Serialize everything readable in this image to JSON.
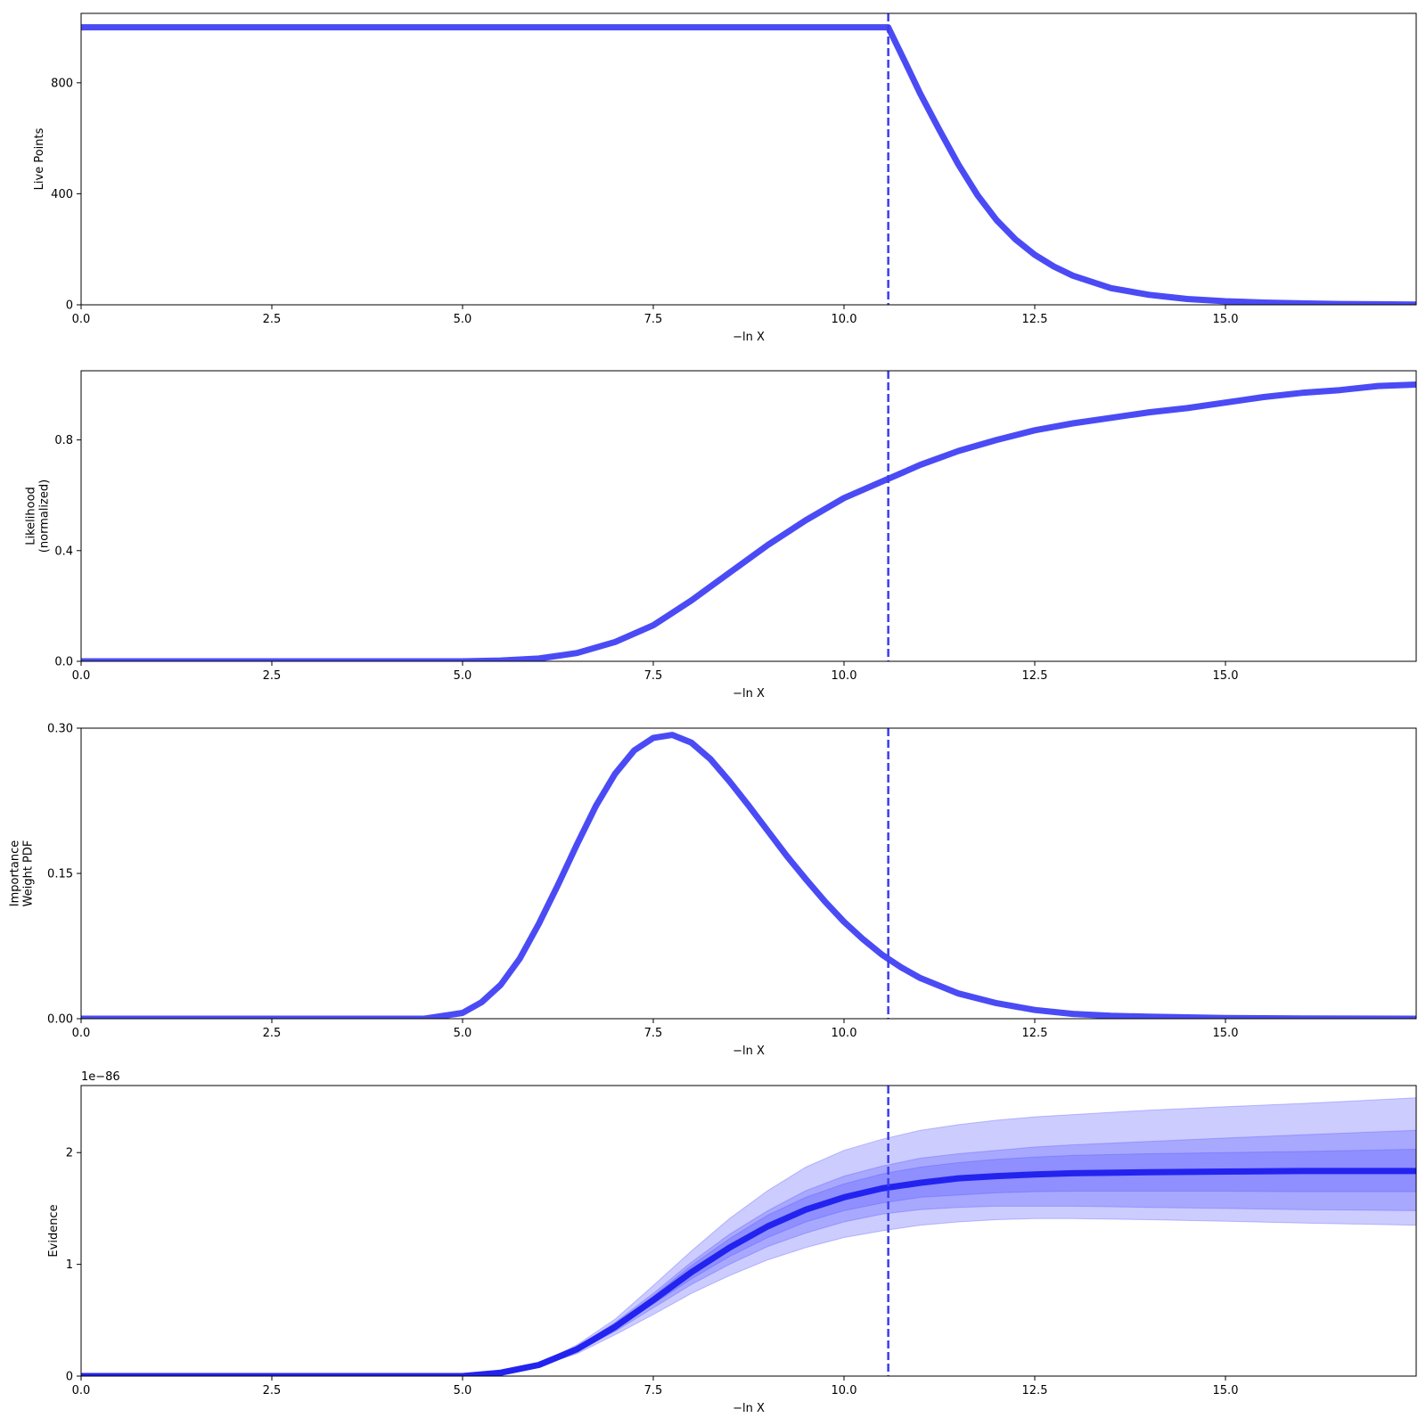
{
  "colors": {
    "line": "#4b4bf5",
    "evidence_line": "#2323f0",
    "band": "#5555ff",
    "marker": "#3c3cee"
  },
  "chart_data": [
    {
      "type": "line",
      "panel": "live-points",
      "xlabel": "−ln X",
      "ylabel": [
        "Live Points"
      ],
      "xlim": [
        0,
        17.5
      ],
      "ylim": [
        0,
        1050
      ],
      "xticks": [
        "0.0",
        "2.5",
        "5.0",
        "7.5",
        "10.0",
        "12.5",
        "15.0"
      ],
      "yticks": [
        "0",
        "400",
        "800"
      ],
      "dashed_marker_x": 10.58,
      "series": [
        {
          "x": [
            0,
            10.5,
            10.58,
            10.8,
            11.0,
            11.25,
            11.5,
            11.75,
            12.0,
            12.25,
            12.5,
            12.75,
            13.0,
            13.5,
            14.0,
            14.5,
            15.0,
            15.5,
            16.0,
            16.5,
            17.0,
            17.5
          ],
          "y": [
            1000,
            1000,
            1000,
            875,
            760,
            630,
            505,
            395,
            305,
            235,
            180,
            138,
            105,
            60,
            36,
            21,
            13,
            8,
            5,
            3,
            2,
            1
          ]
        }
      ]
    },
    {
      "type": "line",
      "panel": "likelihood",
      "xlabel": "−ln X",
      "ylabel": [
        "Likelihood",
        "(normalized)"
      ],
      "xlim": [
        0,
        17.5
      ],
      "ylim": [
        0,
        1.05
      ],
      "xticks": [
        "0.0",
        "2.5",
        "5.0",
        "7.5",
        "10.0",
        "12.5",
        "15.0"
      ],
      "yticks": [
        "0.0",
        "0.4",
        "0.8"
      ],
      "dashed_marker_x": 10.58,
      "series": [
        {
          "x": [
            0,
            5.0,
            5.5,
            6.0,
            6.5,
            7.0,
            7.5,
            8.0,
            8.5,
            9.0,
            9.5,
            10.0,
            10.5,
            11.0,
            11.5,
            12.0,
            12.5,
            13.0,
            13.5,
            14.0,
            14.5,
            15.0,
            15.5,
            16.0,
            16.5,
            17.0,
            17.5
          ],
          "y": [
            0.0,
            0.0,
            0.003,
            0.01,
            0.03,
            0.07,
            0.13,
            0.22,
            0.32,
            0.42,
            0.51,
            0.59,
            0.65,
            0.71,
            0.76,
            0.8,
            0.835,
            0.86,
            0.88,
            0.9,
            0.915,
            0.935,
            0.955,
            0.97,
            0.98,
            0.995,
            1.0
          ]
        }
      ]
    },
    {
      "type": "line",
      "panel": "importance-weight",
      "xlabel": "−ln X",
      "ylabel": [
        "Importance",
        "Weight PDF"
      ],
      "xlim": [
        0,
        17.5
      ],
      "ylim": [
        0,
        0.3
      ],
      "xticks": [
        "0.0",
        "2.5",
        "5.0",
        "7.5",
        "10.0",
        "12.5",
        "15.0"
      ],
      "yticks": [
        "0.00",
        "0.15",
        "0.30"
      ],
      "dashed_marker_x": 10.58,
      "series": [
        {
          "x": [
            0,
            4.5,
            5.0,
            5.25,
            5.5,
            5.75,
            6.0,
            6.25,
            6.5,
            6.75,
            7.0,
            7.25,
            7.5,
            7.75,
            8.0,
            8.25,
            8.5,
            8.75,
            9.0,
            9.25,
            9.5,
            9.75,
            10.0,
            10.25,
            10.5,
            10.75,
            11.0,
            11.5,
            12.0,
            12.5,
            13.0,
            13.5,
            14.0,
            15.0,
            16.0,
            17.5
          ],
          "y": [
            0.0,
            0.0,
            0.006,
            0.017,
            0.035,
            0.062,
            0.098,
            0.138,
            0.18,
            0.22,
            0.253,
            0.277,
            0.29,
            0.293,
            0.285,
            0.268,
            0.245,
            0.22,
            0.194,
            0.168,
            0.144,
            0.121,
            0.1,
            0.082,
            0.066,
            0.053,
            0.042,
            0.026,
            0.016,
            0.009,
            0.005,
            0.003,
            0.002,
            0.0006,
            0.0002,
            0.0
          ]
        }
      ]
    },
    {
      "type": "area",
      "panel": "evidence",
      "xlabel": "−ln X",
      "ylabel": [
        "Evidence"
      ],
      "offset_text": "1e−86",
      "xlim": [
        0,
        17.5
      ],
      "ylim": [
        0,
        2.6
      ],
      "xticks": [
        "0.0",
        "2.5",
        "5.0",
        "7.5",
        "10.0",
        "12.5",
        "15.0"
      ],
      "yticks": [
        "0",
        "1",
        "2"
      ],
      "dashed_marker_x": 10.58,
      "x": [
        0,
        5.0,
        5.5,
        6.0,
        6.5,
        7.0,
        7.5,
        8.0,
        8.5,
        9.0,
        9.5,
        10.0,
        10.5,
        11.0,
        11.5,
        12.0,
        12.5,
        13.0,
        14.0,
        15.0,
        16.0,
        17.5
      ],
      "series": [
        {
          "name": "median",
          "values": [
            0.0,
            0.0,
            0.03,
            0.1,
            0.24,
            0.44,
            0.68,
            0.93,
            1.15,
            1.34,
            1.49,
            1.6,
            1.68,
            1.73,
            1.77,
            1.79,
            1.805,
            1.815,
            1.825,
            1.83,
            1.835,
            1.835
          ]
        }
      ],
      "bands": [
        {
          "lower": [
            0.0,
            0.0,
            0.03,
            0.09,
            0.2,
            0.37,
            0.55,
            0.74,
            0.9,
            1.04,
            1.15,
            1.24,
            1.3,
            1.35,
            1.38,
            1.4,
            1.41,
            1.41,
            1.4,
            1.385,
            1.37,
            1.35
          ],
          "upper": [
            0.0,
            0.0,
            0.03,
            0.11,
            0.28,
            0.51,
            0.81,
            1.12,
            1.41,
            1.66,
            1.87,
            2.02,
            2.12,
            2.2,
            2.25,
            2.29,
            2.32,
            2.34,
            2.38,
            2.41,
            2.44,
            2.49
          ]
        },
        {
          "lower": [
            0.0,
            0.0,
            0.03,
            0.095,
            0.22,
            0.4,
            0.61,
            0.82,
            1.0,
            1.16,
            1.28,
            1.38,
            1.45,
            1.49,
            1.51,
            1.52,
            1.52,
            1.52,
            1.51,
            1.5,
            1.49,
            1.48
          ],
          "upper": [
            0.0,
            0.0,
            0.03,
            0.105,
            0.26,
            0.48,
            0.74,
            1.02,
            1.27,
            1.48,
            1.66,
            1.79,
            1.88,
            1.95,
            1.99,
            2.02,
            2.05,
            2.07,
            2.1,
            2.13,
            2.16,
            2.2
          ]
        },
        {
          "lower": [
            0.0,
            0.0,
            0.03,
            0.098,
            0.23,
            0.42,
            0.645,
            0.87,
            1.07,
            1.24,
            1.38,
            1.48,
            1.55,
            1.6,
            1.62,
            1.64,
            1.65,
            1.655,
            1.655,
            1.655,
            1.65,
            1.65
          ],
          "upper": [
            0.0,
            0.0,
            0.03,
            0.102,
            0.25,
            0.46,
            0.715,
            0.99,
            1.23,
            1.44,
            1.6,
            1.72,
            1.81,
            1.87,
            1.91,
            1.94,
            1.96,
            1.975,
            1.99,
            2.0,
            2.01,
            2.03
          ]
        }
      ]
    }
  ]
}
